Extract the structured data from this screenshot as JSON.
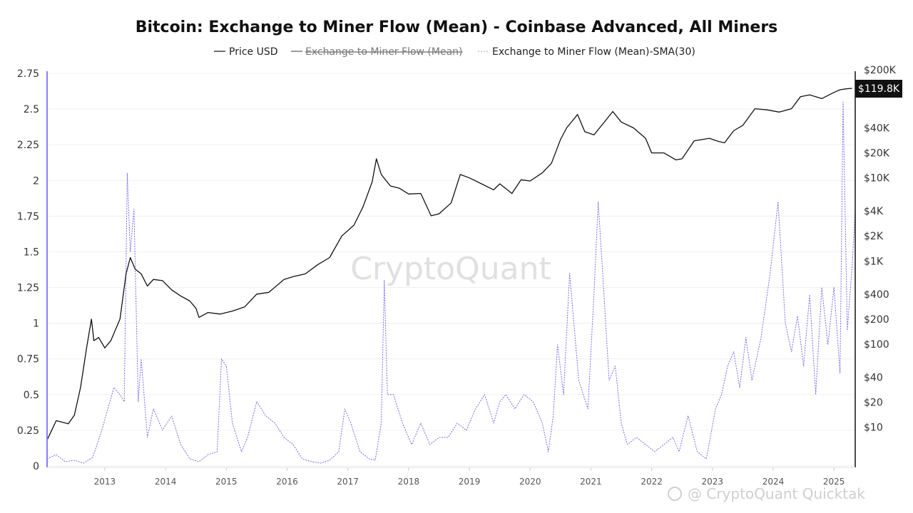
{
  "chart_data": {
    "type": "line",
    "title": "Bitcoin: Exchange to Miner Flow (Mean) - Coinbase Advanced, All Miners",
    "legend": {
      "placement": "top-center",
      "entries": [
        {
          "name": "Price USD",
          "state": "visible"
        },
        {
          "name": "Exchange to Miner Flow (Mean)",
          "state": "hidden"
        },
        {
          "name": "Exchange to Miner Flow (Mean)-SMA(30)",
          "state": "visible"
        }
      ]
    },
    "x_ticks": [
      "2013",
      "2014",
      "2015",
      "2016",
      "2017",
      "2018",
      "2019",
      "2020",
      "2021",
      "2022",
      "2023",
      "2024",
      "2025"
    ],
    "x_range": [
      2012.55,
      2025.85
    ],
    "y_left": {
      "ticks": [
        "0",
        "0.25",
        "0.5",
        "0.75",
        "1",
        "1.25",
        "1.5",
        "1.75",
        "2",
        "2.25",
        "2.5",
        "2.75"
      ],
      "ylim": [
        0,
        2.75
      ]
    },
    "y_right": {
      "scale": "log",
      "ticks": [
        "$10",
        "$20",
        "$40",
        "$100",
        "$200",
        "$400",
        "$1K",
        "$2K",
        "$4K",
        "$10K",
        "$20K",
        "$40K",
        "$200K"
      ],
      "current_value_label": "$119.8K"
    },
    "grid": "horizontal",
    "colors": {
      "price": "#111111",
      "flow_sma": "#7b6cf0",
      "badge": "#111111",
      "axis_accent": "#8b7cf6"
    },
    "series": [
      {
        "name": "Price USD",
        "axis": "right",
        "x": [
          2012.55,
          2012.7,
          2012.9,
          2013.0,
          2013.1,
          2013.2,
          2013.28,
          2013.32,
          2013.4,
          2013.5,
          2013.6,
          2013.75,
          2013.85,
          2013.92,
          2014.0,
          2014.1,
          2014.2,
          2014.3,
          2014.45,
          2014.6,
          2014.75,
          2014.9,
          2015.0,
          2015.05,
          2015.2,
          2015.4,
          2015.6,
          2015.8,
          2016.0,
          2016.2,
          2016.45,
          2016.6,
          2016.8,
          2017.0,
          2017.2,
          2017.4,
          2017.6,
          2017.75,
          2017.9,
          2017.97,
          2018.05,
          2018.2,
          2018.35,
          2018.5,
          2018.7,
          2018.87,
          2019.0,
          2019.2,
          2019.35,
          2019.5,
          2019.7,
          2019.9,
          2020.0,
          2020.2,
          2020.35,
          2020.5,
          2020.7,
          2020.85,
          2021.0,
          2021.1,
          2021.28,
          2021.4,
          2021.55,
          2021.7,
          2021.86,
          2022.0,
          2022.2,
          2022.4,
          2022.5,
          2022.7,
          2022.9,
          2023.0,
          2023.2,
          2023.45,
          2023.6,
          2023.7,
          2023.85,
          2024.0,
          2024.2,
          2024.4,
          2024.6,
          2024.8,
          2024.95,
          2025.1,
          2025.3,
          2025.5,
          2025.6,
          2025.7,
          2025.8
        ],
        "values": [
          7,
          12,
          11,
          14,
          30,
          90,
          200,
          110,
          120,
          90,
          110,
          200,
          700,
          1100,
          800,
          700,
          500,
          600,
          580,
          450,
          380,
          330,
          270,
          210,
          240,
          230,
          250,
          280,
          400,
          420,
          600,
          650,
          700,
          900,
          1100,
          2000,
          2700,
          4500,
          9000,
          17000,
          11000,
          8000,
          7500,
          6400,
          6500,
          3500,
          3700,
          5000,
          11000,
          10000,
          8500,
          7200,
          8500,
          6500,
          9500,
          9200,
          11500,
          15000,
          29000,
          40000,
          58000,
          36000,
          33000,
          45000,
          63000,
          47000,
          40000,
          30000,
          20000,
          20000,
          16500,
          17000,
          28000,
          30000,
          27500,
          26500,
          37000,
          43000,
          68000,
          66000,
          62000,
          68000,
          95000,
          100000,
          90000,
          107000,
          115000,
          118000,
          119800
        ]
      },
      {
        "name": "Exchange to Miner Flow (Mean)-SMA(30)",
        "axis": "left",
        "x": [
          2012.55,
          2012.7,
          2012.85,
          2013.0,
          2013.15,
          2013.3,
          2013.45,
          2013.55,
          2013.65,
          2013.75,
          2013.82,
          2013.87,
          2013.92,
          2013.98,
          2014.05,
          2014.1,
          2014.2,
          2014.3,
          2014.45,
          2014.6,
          2014.75,
          2014.9,
          2015.05,
          2015.2,
          2015.35,
          2015.42,
          2015.5,
          2015.6,
          2015.75,
          2015.85,
          2016.0,
          2016.15,
          2016.3,
          2016.45,
          2016.6,
          2016.75,
          2016.9,
          2017.05,
          2017.2,
          2017.35,
          2017.45,
          2017.55,
          2017.7,
          2017.85,
          2017.95,
          2018.05,
          2018.1,
          2018.15,
          2018.25,
          2018.4,
          2018.55,
          2018.7,
          2018.85,
          2019.0,
          2019.15,
          2019.3,
          2019.45,
          2019.6,
          2019.75,
          2019.9,
          2020.0,
          2020.1,
          2020.25,
          2020.4,
          2020.55,
          2020.7,
          2020.8,
          2020.88,
          2020.95,
          2021.05,
          2021.15,
          2021.3,
          2021.45,
          2021.55,
          2021.62,
          2021.7,
          2021.8,
          2021.9,
          2022.0,
          2022.1,
          2022.25,
          2022.4,
          2022.55,
          2022.7,
          2022.85,
          2022.95,
          2023.1,
          2023.25,
          2023.4,
          2023.55,
          2023.65,
          2023.75,
          2023.85,
          2023.95,
          2024.05,
          2024.15,
          2024.3,
          2024.45,
          2024.58,
          2024.7,
          2024.8,
          2024.9,
          2025.0,
          2025.1,
          2025.2,
          2025.3,
          2025.4,
          2025.5,
          2025.6,
          2025.65,
          2025.72,
          2025.8,
          2025.85
        ],
        "values": [
          0.05,
          0.08,
          0.03,
          0.04,
          0.02,
          0.06,
          0.25,
          0.4,
          0.55,
          0.5,
          0.45,
          2.05,
          1.5,
          1.8,
          0.45,
          0.75,
          0.2,
          0.4,
          0.25,
          0.35,
          0.15,
          0.05,
          0.03,
          0.08,
          0.1,
          0.75,
          0.7,
          0.3,
          0.1,
          0.2,
          0.45,
          0.35,
          0.3,
          0.2,
          0.15,
          0.05,
          0.03,
          0.02,
          0.04,
          0.1,
          0.4,
          0.3,
          0.1,
          0.05,
          0.04,
          0.3,
          1.3,
          0.5,
          0.5,
          0.3,
          0.15,
          0.3,
          0.15,
          0.2,
          0.2,
          0.3,
          0.25,
          0.4,
          0.5,
          0.3,
          0.45,
          0.5,
          0.4,
          0.5,
          0.45,
          0.3,
          0.1,
          0.35,
          0.85,
          0.5,
          1.35,
          0.6,
          0.4,
          1.2,
          1.85,
          1.3,
          0.6,
          0.7,
          0.3,
          0.15,
          0.2,
          0.15,
          0.1,
          0.15,
          0.2,
          0.1,
          0.35,
          0.1,
          0.05,
          0.4,
          0.5,
          0.7,
          0.8,
          0.55,
          0.9,
          0.6,
          0.9,
          1.35,
          1.85,
          1.0,
          0.8,
          1.05,
          0.7,
          1.2,
          0.5,
          1.25,
          0.85,
          1.25,
          0.65,
          2.55,
          0.95,
          1.4,
          1.8
        ]
      }
    ]
  },
  "watermark": "CryptoQuant",
  "credit": "@ CryptoQuant Quicktak"
}
